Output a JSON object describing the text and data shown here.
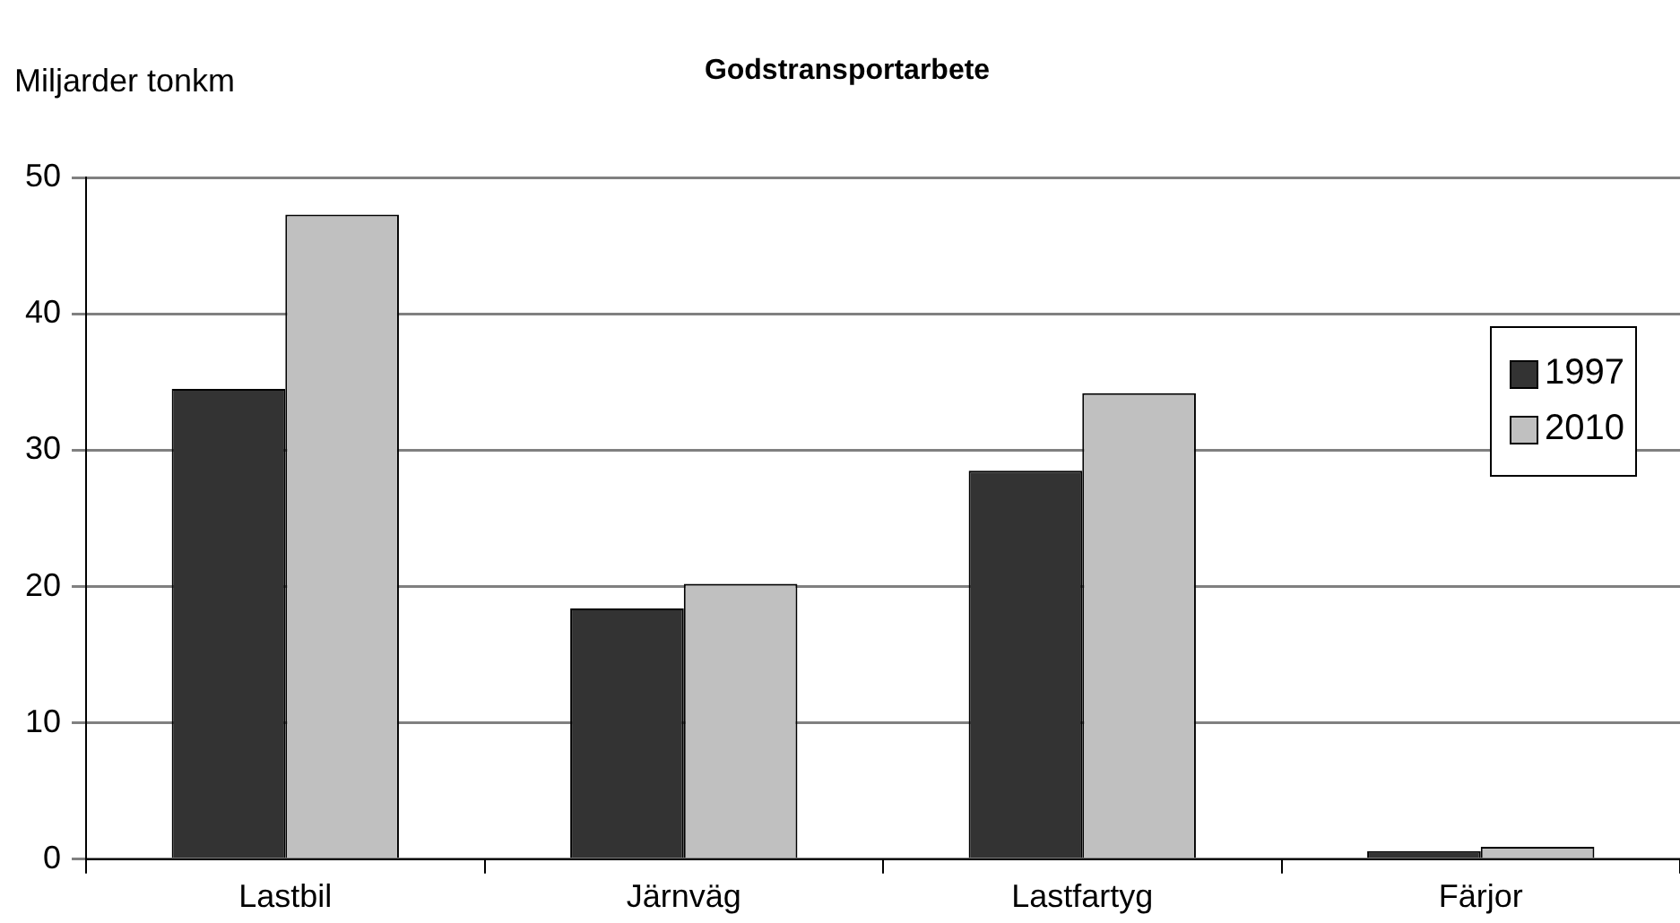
{
  "chart_data": {
    "type": "bar",
    "title": "Godstransportarbete",
    "ylabel": "Miljarder tonkm",
    "categories": [
      "Lastbil",
      "Järnväg",
      "Lastfartyg",
      "Färjor"
    ],
    "series": [
      {
        "name": "1997",
        "color": "#333333",
        "values": [
          34.5,
          18.4,
          28.5,
          0.6
        ]
      },
      {
        "name": "2010",
        "color": "#c0c0c0",
        "values": [
          47.3,
          20.2,
          34.2,
          0.9
        ]
      }
    ],
    "ylim": [
      0,
      50
    ],
    "yticks": [
      0,
      10,
      20,
      30,
      40,
      50
    ],
    "grid": "y",
    "legend": "right"
  }
}
